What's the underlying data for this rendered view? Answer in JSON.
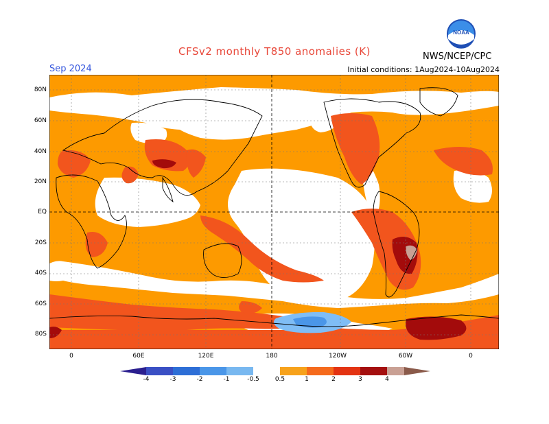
{
  "header": {
    "title": "CFSv2 monthly T850 anomalies (K)",
    "month": "Sep 2024",
    "initial_conditions": "Initial conditions: 1Aug2024-10Aug2024",
    "agency": "NWS/NCEP/CPC",
    "logo_text": "NOAA"
  },
  "axes": {
    "lat_labels": [
      "80N",
      "60N",
      "40N",
      "20N",
      "EQ",
      "20S",
      "40S",
      "60S",
      "80S"
    ],
    "lon_labels": [
      "0",
      "60E",
      "120E",
      "180",
      "120W",
      "60W",
      "0"
    ]
  },
  "colorbar": {
    "labels": [
      "-4",
      "-3",
      "-2",
      "-1",
      "-0.5",
      "0.5",
      "1",
      "2",
      "3",
      "4"
    ],
    "colors": [
      "#2b1f8f",
      "#3a4fc4",
      "#2d6ed6",
      "#4a96e8",
      "#78b8f0",
      "#ffffff",
      "#f7a21b",
      "#f56a1c",
      "#e33312",
      "#a40f0f",
      "#c9a094",
      "#8a5a4a"
    ]
  },
  "legend_colors": {
    "warm_0_5_1": "#fd9a00",
    "warm_1_2": "#f2551d",
    "warm_2_3": "#a30b0b",
    "warm_3_4": "#c9a094",
    "cold_1_0_5": "#7fbdf5",
    "cold_2_1": "#4a96e8"
  }
}
